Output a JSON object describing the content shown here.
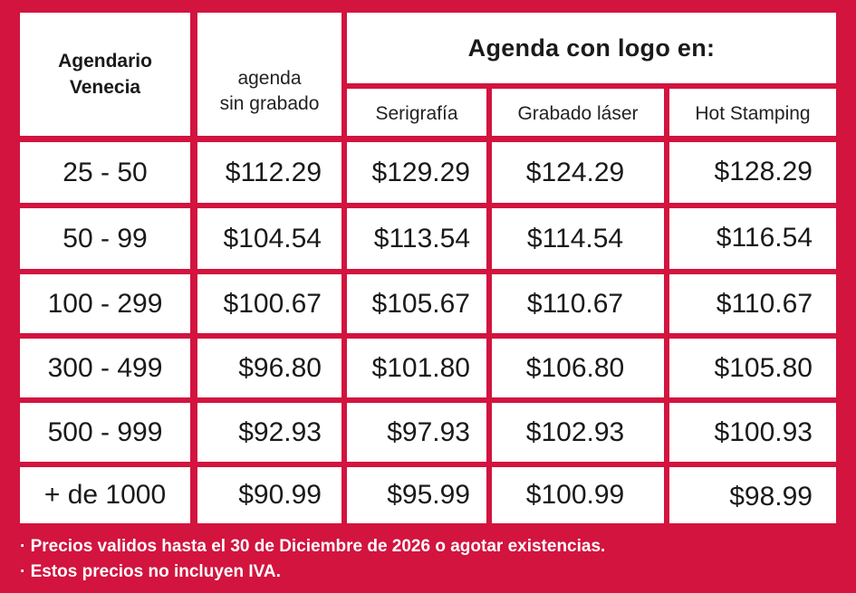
{
  "header": {
    "product": [
      "Agendario",
      "Venecia"
    ],
    "no_engraving": [
      "agenda",
      "sin grabado"
    ],
    "group": "Agenda con logo en:",
    "methods": [
      "Serigrafía",
      "Grabado láser",
      "Hot Stamping"
    ]
  },
  "rows": [
    {
      "qty": "25 - 50",
      "prices": [
        "$112.29",
        "$129.29",
        "$124.29",
        "$128.29"
      ]
    },
    {
      "qty": "50 - 99",
      "prices": [
        "$104.54",
        "$113.54",
        "$114.54",
        "$116.54"
      ]
    },
    {
      "qty": "100 - 299",
      "prices": [
        "$100.67",
        "$105.67",
        "$110.67",
        "$110.67"
      ]
    },
    {
      "qty": "300 - 499",
      "prices": [
        "$96.80",
        "$101.80",
        "$106.80",
        "$105.80"
      ]
    },
    {
      "qty": "500 - 999",
      "prices": [
        "$92.93",
        "$97.93",
        "$102.93",
        "$100.93"
      ]
    },
    {
      "qty": "+ de 1000",
      "prices": [
        "$90.99",
        "$95.99",
        "$100.99",
        "$98.99"
      ]
    }
  ],
  "notes": [
    "· Precios validos hasta el 30 de Diciembre de 2026 o agotar existencias.",
    "· Estos precios no incluyen IVA."
  ],
  "colors": {
    "background": "#d2143f",
    "cell": "#ffffff",
    "text": "#1a1a1a"
  }
}
